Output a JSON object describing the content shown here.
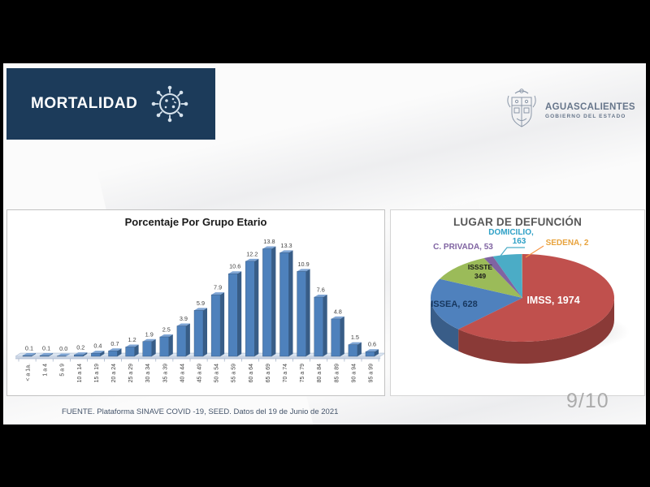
{
  "page": {
    "slide_number": "9/10",
    "source_note": "FUENTE. Plataforma SINAVE COVID -19, SEED. Datos del 19 de Junio de 2021"
  },
  "header": {
    "title": "MORTALIDAD",
    "logo": {
      "name": "AGUASCALIENTES",
      "subtitle": "GOBIERNO DEL ESTADO"
    }
  },
  "theme": {
    "header_bg": "#1C3B5A",
    "footer_text": "#44546A",
    "bar_color": "#4E81BC"
  },
  "chart_data": [
    {
      "type": "bar",
      "title": "Porcentaje Por Grupo Etario",
      "categories": [
        "< a 1a.",
        "1 a 4",
        "5 a 9",
        "10 a 14",
        "15 a 19",
        "20 a 24",
        "25 a 29",
        "30 a 34",
        "35 a 39",
        "40 a 44",
        "45 a 49",
        "50 a 54",
        "55 a 59",
        "60 a 64",
        "65 a 69",
        "70 a 74",
        "75 a 79",
        "80 a 84",
        "85 a 89",
        "90 a 94",
        "95 a 99"
      ],
      "values": [
        0.1,
        0.1,
        0.0,
        0.2,
        0.4,
        0.7,
        1.2,
        1.9,
        2.5,
        3.9,
        5.9,
        7.9,
        10.6,
        12.2,
        13.8,
        13.3,
        10.9,
        7.6,
        4.8,
        1.5,
        0.6
      ],
      "xlabel": "",
      "ylabel": "",
      "ylim": [
        0,
        14
      ],
      "grid": false,
      "value_labels": true,
      "bar_color": "#4E81BC",
      "style": "3d-columns"
    },
    {
      "type": "pie",
      "title": "LUGAR DE DEFUNCIÓN",
      "style": "3d",
      "direction": "clockwise",
      "start_angle_deg": 0,
      "slices": [
        {
          "label": "IMSS",
          "value": 1974,
          "color": "#C0504D",
          "label_color": "#FFFFFF"
        },
        {
          "label": "ISSEA",
          "value": 628,
          "color": "#4F81BD",
          "label_color": "#17375E"
        },
        {
          "label": "ISSSTE",
          "value": 349,
          "color": "#9BBB59",
          "label_color": "#1a1a1a"
        },
        {
          "label": "C. PRIVADA",
          "value": 53,
          "color": "#8064A2",
          "label_color": "#8064A2"
        },
        {
          "label": "DOMICILIO",
          "value": 163,
          "color": "#4BACC6",
          "label_color": "#2EA0C6"
        },
        {
          "label": "SEDENA",
          "value": 2,
          "color": "#F79646",
          "label_color": "#E8A33D"
        }
      ]
    }
  ]
}
